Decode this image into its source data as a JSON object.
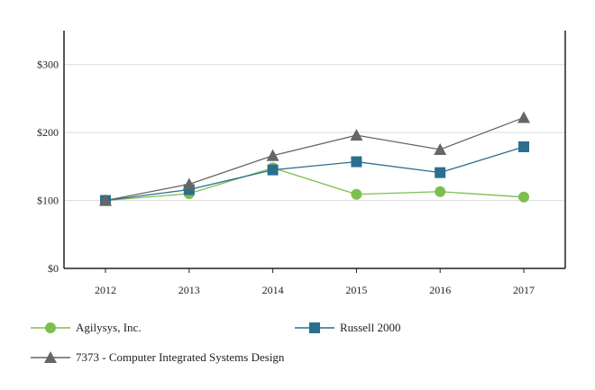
{
  "chart_data": {
    "type": "line",
    "title": "",
    "xlabel": "",
    "ylabel": "",
    "categories": [
      "2012",
      "2013",
      "2014",
      "2015",
      "2016",
      "2017"
    ],
    "ylim": [
      0,
      350
    ],
    "yticks": [
      0,
      100,
      200,
      300
    ],
    "ytick_labels": [
      "$0",
      "$100",
      "$200",
      "$300"
    ],
    "grid": true,
    "legend_position": "bottom",
    "series": [
      {
        "name": "Agilysys, Inc.",
        "color": "#7dbf4f",
        "marker": "circle",
        "values": [
          100,
          110,
          148,
          109,
          113,
          105
        ]
      },
      {
        "name": "Russell 2000",
        "color": "#2a6f8f",
        "marker": "square",
        "values": [
          100,
          116,
          145,
          157,
          141,
          179
        ]
      },
      {
        "name": "7373 - Computer Integrated Systems Design",
        "color": "#666666",
        "marker": "triangle",
        "values": [
          100,
          124,
          166,
          196,
          175,
          222
        ]
      }
    ]
  }
}
